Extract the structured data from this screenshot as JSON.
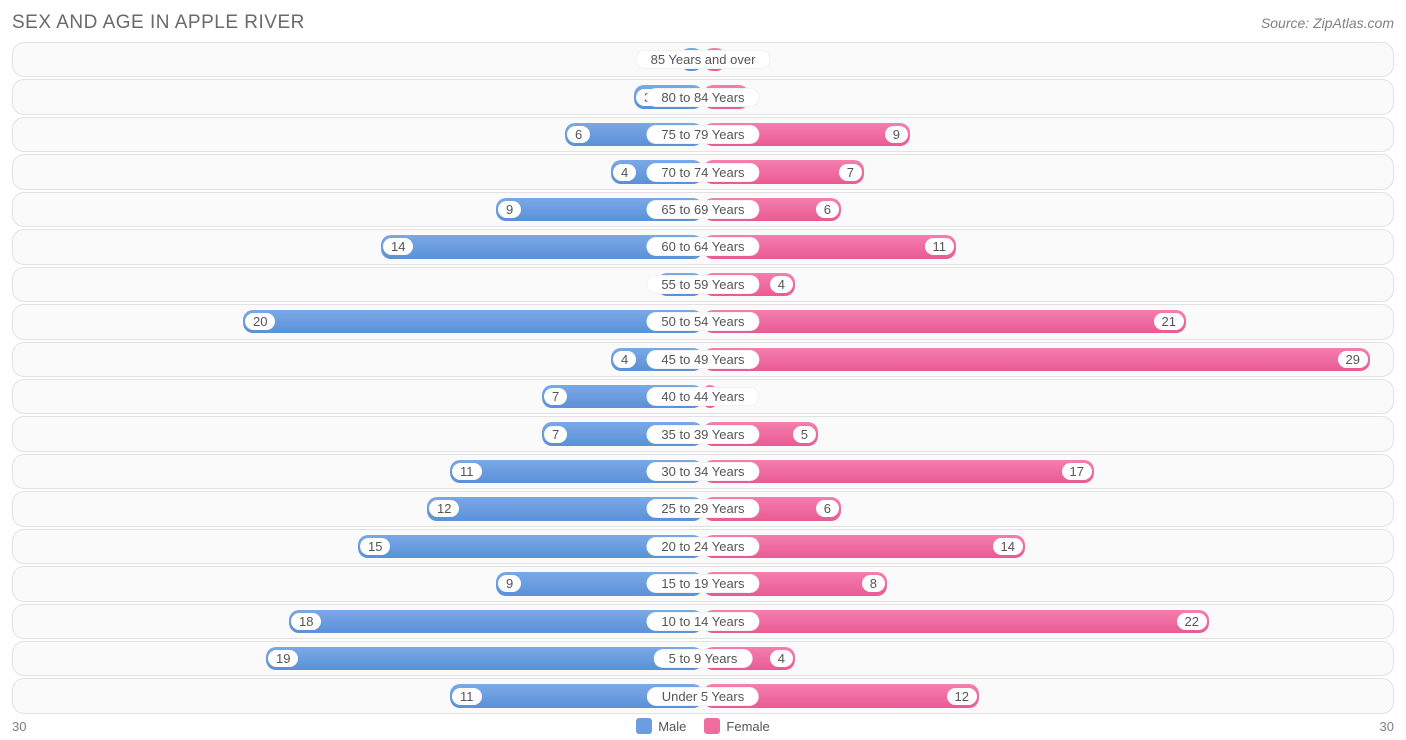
{
  "title": "SEX AND AGE IN APPLE RIVER",
  "title_fontsize": 19,
  "title_color": "#6a6a6a",
  "source_text": "Source: ZipAtlas.com",
  "source_fontsize": 14,
  "source_color": "#808080",
  "axis_max": 30,
  "axis_label_left": "30",
  "axis_label_right": "30",
  "axis_label_color": "#808080",
  "track_bg": "#fafafa",
  "track_border": "#e2e2e2",
  "pill_text_color": "#555555",
  "legend": {
    "male": {
      "label": "Male",
      "color": "#6b9de0"
    },
    "female": {
      "label": "Female",
      "color": "#f06ba0"
    }
  },
  "male_gradient": {
    "top": "#7aa9e6",
    "bottom": "#5b90d8"
  },
  "female_gradient": {
    "top": "#f47fae",
    "bottom": "#ea5a94"
  },
  "rows": [
    {
      "category": "85 Years and over",
      "male": 1,
      "female": 1
    },
    {
      "category": "80 to 84 Years",
      "male": 3,
      "female": 2
    },
    {
      "category": "75 to 79 Years",
      "male": 6,
      "female": 9
    },
    {
      "category": "70 to 74 Years",
      "male": 4,
      "female": 7
    },
    {
      "category": "65 to 69 Years",
      "male": 9,
      "female": 6
    },
    {
      "category": "60 to 64 Years",
      "male": 14,
      "female": 11
    },
    {
      "category": "55 to 59 Years",
      "male": 2,
      "female": 4
    },
    {
      "category": "50 to 54 Years",
      "male": 20,
      "female": 21
    },
    {
      "category": "45 to 49 Years",
      "male": 4,
      "female": 29
    },
    {
      "category": "40 to 44 Years",
      "male": 7,
      "female": 0
    },
    {
      "category": "35 to 39 Years",
      "male": 7,
      "female": 5
    },
    {
      "category": "30 to 34 Years",
      "male": 11,
      "female": 17
    },
    {
      "category": "25 to 29 Years",
      "male": 12,
      "female": 6
    },
    {
      "category": "20 to 24 Years",
      "male": 15,
      "female": 14
    },
    {
      "category": "15 to 19 Years",
      "male": 9,
      "female": 8
    },
    {
      "category": "10 to 14 Years",
      "male": 18,
      "female": 22
    },
    {
      "category": "5 to 9 Years",
      "male": 19,
      "female": 4
    },
    {
      "category": "Under 5 Years",
      "male": 11,
      "female": 12
    }
  ]
}
